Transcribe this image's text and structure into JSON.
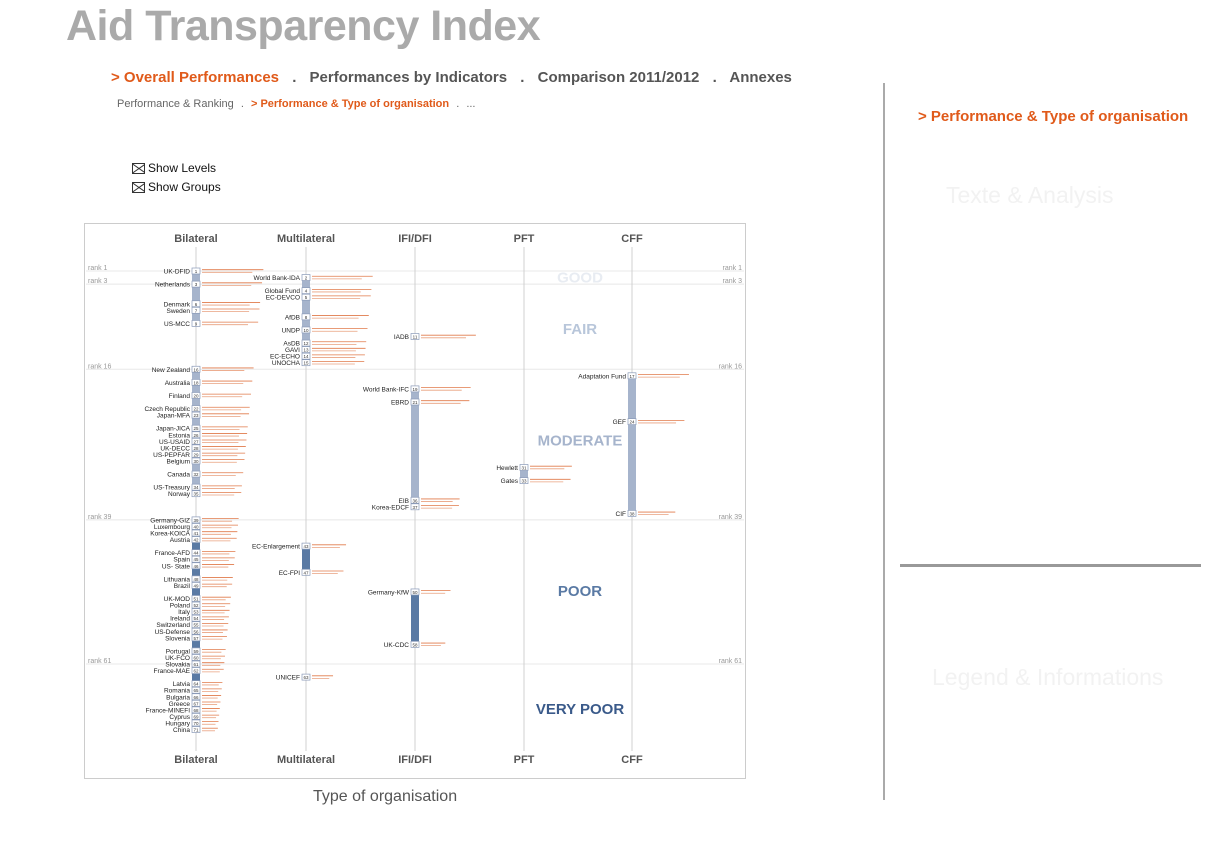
{
  "header": {
    "title": "Aid Transparency Index"
  },
  "nav": {
    "items": [
      {
        "label": "> Overall Performances",
        "active": true
      },
      {
        "label": "Performances by Indicators",
        "active": false
      },
      {
        "label": "Comparison 2011/2012",
        "active": false
      },
      {
        "label": "Annexes",
        "active": false
      }
    ],
    "separator": "."
  },
  "subnav": {
    "items": [
      {
        "label": "Performance & Ranking",
        "active": false
      },
      {
        "label": "> Performance & Type of organisation",
        "active": true
      },
      {
        "label": "...",
        "active": false
      }
    ],
    "separator": "."
  },
  "options": {
    "show_levels": "Show Levels",
    "show_groups": "Show Groups"
  },
  "side": {
    "title": "> Performance & Type of organisation",
    "text_panel": "Texte & Analysis",
    "legend_panel": "Legend & Informations"
  },
  "colors": {
    "accent": "#e05a1a",
    "bar": "#e07a4a",
    "light_col": "#a6b4cc",
    "dark_col": "#5a7aa4",
    "good": "#e8ecf2",
    "fair": "#b8c6da",
    "moderate": "#a6b4cc",
    "poor": "#5a7aa4",
    "very_poor": "#3a5a8a"
  },
  "chart_data": {
    "type": "scatter",
    "xlabel": "Type of organisation",
    "ylabel": "Rank",
    "categories": [
      "Bilateral",
      "Multilateral",
      "IFI/DFI",
      "PFT",
      "CFF"
    ],
    "levels": [
      "GOOD",
      "FAIR",
      "MODERATE",
      "POOR",
      "VERY POOR"
    ],
    "rank_markers": [
      {
        "rank": 1,
        "label": "rank 1"
      },
      {
        "rank": 3,
        "label": "rank 3"
      },
      {
        "rank": 16,
        "label": "rank 16"
      },
      {
        "rank": 39,
        "label": "rank 39"
      },
      {
        "rank": 61,
        "label": "rank 61"
      }
    ],
    "organisations": [
      {
        "name": "UK-DFID",
        "rank": 1,
        "type": "Bilateral"
      },
      {
        "name": "Netherlands",
        "rank": 3,
        "type": "Bilateral"
      },
      {
        "name": "Denmark",
        "rank": 6,
        "type": "Bilateral"
      },
      {
        "name": "Sweden",
        "rank": 7,
        "type": "Bilateral"
      },
      {
        "name": "US-MCC",
        "rank": 9,
        "type": "Bilateral"
      },
      {
        "name": "New Zealand",
        "rank": 16,
        "type": "Bilateral"
      },
      {
        "name": "Australia",
        "rank": 18,
        "type": "Bilateral"
      },
      {
        "name": "Finland",
        "rank": 20,
        "type": "Bilateral"
      },
      {
        "name": "Czech Republic",
        "rank": 22,
        "type": "Bilateral"
      },
      {
        "name": "Japan-MFA",
        "rank": 23,
        "type": "Bilateral"
      },
      {
        "name": "Japan-JICA",
        "rank": 25,
        "type": "Bilateral"
      },
      {
        "name": "Estonia",
        "rank": 26,
        "type": "Bilateral"
      },
      {
        "name": "US-USAID",
        "rank": 27,
        "type": "Bilateral"
      },
      {
        "name": "UK-DECC",
        "rank": 28,
        "type": "Bilateral"
      },
      {
        "name": "US-PEPFAR",
        "rank": 29,
        "type": "Bilateral"
      },
      {
        "name": "Belgium",
        "rank": 30,
        "type": "Bilateral"
      },
      {
        "name": "Canada",
        "rank": 32,
        "type": "Bilateral"
      },
      {
        "name": "US-Treasury",
        "rank": 34,
        "type": "Bilateral"
      },
      {
        "name": "Norway",
        "rank": 35,
        "type": "Bilateral"
      },
      {
        "name": "Germany-GIZ",
        "rank": 39,
        "type": "Bilateral"
      },
      {
        "name": "Luxembourg",
        "rank": 40,
        "type": "Bilateral"
      },
      {
        "name": "Korea-KOICA",
        "rank": 41,
        "type": "Bilateral"
      },
      {
        "name": "Austria",
        "rank": 42,
        "type": "Bilateral"
      },
      {
        "name": "France-AFD",
        "rank": 44,
        "type": "Bilateral"
      },
      {
        "name": "Spain",
        "rank": 45,
        "type": "Bilateral"
      },
      {
        "name": "US- State",
        "rank": 46,
        "type": "Bilateral"
      },
      {
        "name": "Lithuania",
        "rank": 48,
        "type": "Bilateral"
      },
      {
        "name": "Brazil",
        "rank": 49,
        "type": "Bilateral"
      },
      {
        "name": "UK-MOD",
        "rank": 51,
        "type": "Bilateral"
      },
      {
        "name": "Poland",
        "rank": 52,
        "type": "Bilateral"
      },
      {
        "name": "Italy",
        "rank": 53,
        "type": "Bilateral"
      },
      {
        "name": "Ireland",
        "rank": 54,
        "type": "Bilateral"
      },
      {
        "name": "Switzerland",
        "rank": 55,
        "type": "Bilateral"
      },
      {
        "name": "US-Defense",
        "rank": 56,
        "type": "Bilateral"
      },
      {
        "name": "Slovenia",
        "rank": 57,
        "type": "Bilateral"
      },
      {
        "name": "Portugal",
        "rank": 59,
        "type": "Bilateral"
      },
      {
        "name": "UK-FCO",
        "rank": 60,
        "type": "Bilateral"
      },
      {
        "name": "Slovakia",
        "rank": 61,
        "type": "Bilateral"
      },
      {
        "name": "France-MAE",
        "rank": 62,
        "type": "Bilateral"
      },
      {
        "name": "Latvia",
        "rank": 64,
        "type": "Bilateral"
      },
      {
        "name": "Romania",
        "rank": 65,
        "type": "Bilateral"
      },
      {
        "name": "Bulgaria",
        "rank": 66,
        "type": "Bilateral"
      },
      {
        "name": "Greece",
        "rank": 67,
        "type": "Bilateral"
      },
      {
        "name": "France-MINEFI",
        "rank": 68,
        "type": "Bilateral"
      },
      {
        "name": "Cyprus",
        "rank": 69,
        "type": "Bilateral"
      },
      {
        "name": "Hungary",
        "rank": 70,
        "type": "Bilateral"
      },
      {
        "name": "China",
        "rank": 71,
        "type": "Bilateral"
      },
      {
        "name": "World Bank-IDA",
        "rank": 2,
        "type": "Multilateral"
      },
      {
        "name": "Global Fund",
        "rank": 4,
        "type": "Multilateral"
      },
      {
        "name": "EC-DEVCO",
        "rank": 5,
        "type": "Multilateral"
      },
      {
        "name": "AfDB",
        "rank": 8,
        "type": "Multilateral"
      },
      {
        "name": "UNDP",
        "rank": 10,
        "type": "Multilateral"
      },
      {
        "name": "AsDB",
        "rank": 12,
        "type": "Multilateral"
      },
      {
        "name": "GAVI",
        "rank": 13,
        "type": "Multilateral"
      },
      {
        "name": "EC-ECHO",
        "rank": 14,
        "type": "Multilateral"
      },
      {
        "name": "UNOCHA",
        "rank": 15,
        "type": "Multilateral"
      },
      {
        "name": "EC-Enlargement",
        "rank": 43,
        "type": "Multilateral"
      },
      {
        "name": "EC-FPI",
        "rank": 47,
        "type": "Multilateral"
      },
      {
        "name": "UNICEF",
        "rank": 63,
        "type": "Multilateral"
      },
      {
        "name": "IADB",
        "rank": 11,
        "type": "IFI/DFI"
      },
      {
        "name": "World Bank-IFC",
        "rank": 19,
        "type": "IFI/DFI"
      },
      {
        "name": "EBRD",
        "rank": 21,
        "type": "IFI/DFI"
      },
      {
        "name": "EIB",
        "rank": 36,
        "type": "IFI/DFI"
      },
      {
        "name": "Korea-EDCF",
        "rank": 37,
        "type": "IFI/DFI"
      },
      {
        "name": "Germany-KfW",
        "rank": 50,
        "type": "IFI/DFI"
      },
      {
        "name": "UK-CDC",
        "rank": 58,
        "type": "IFI/DFI"
      },
      {
        "name": "Hewlett",
        "rank": 31,
        "type": "PFT"
      },
      {
        "name": "Gates",
        "rank": 33,
        "type": "PFT"
      },
      {
        "name": "Adaptation Fund",
        "rank": 17,
        "type": "CFF"
      },
      {
        "name": "GEF",
        "rank": 24,
        "type": "CFF"
      },
      {
        "name": "CIF",
        "rank": 38,
        "type": "CFF"
      }
    ]
  }
}
